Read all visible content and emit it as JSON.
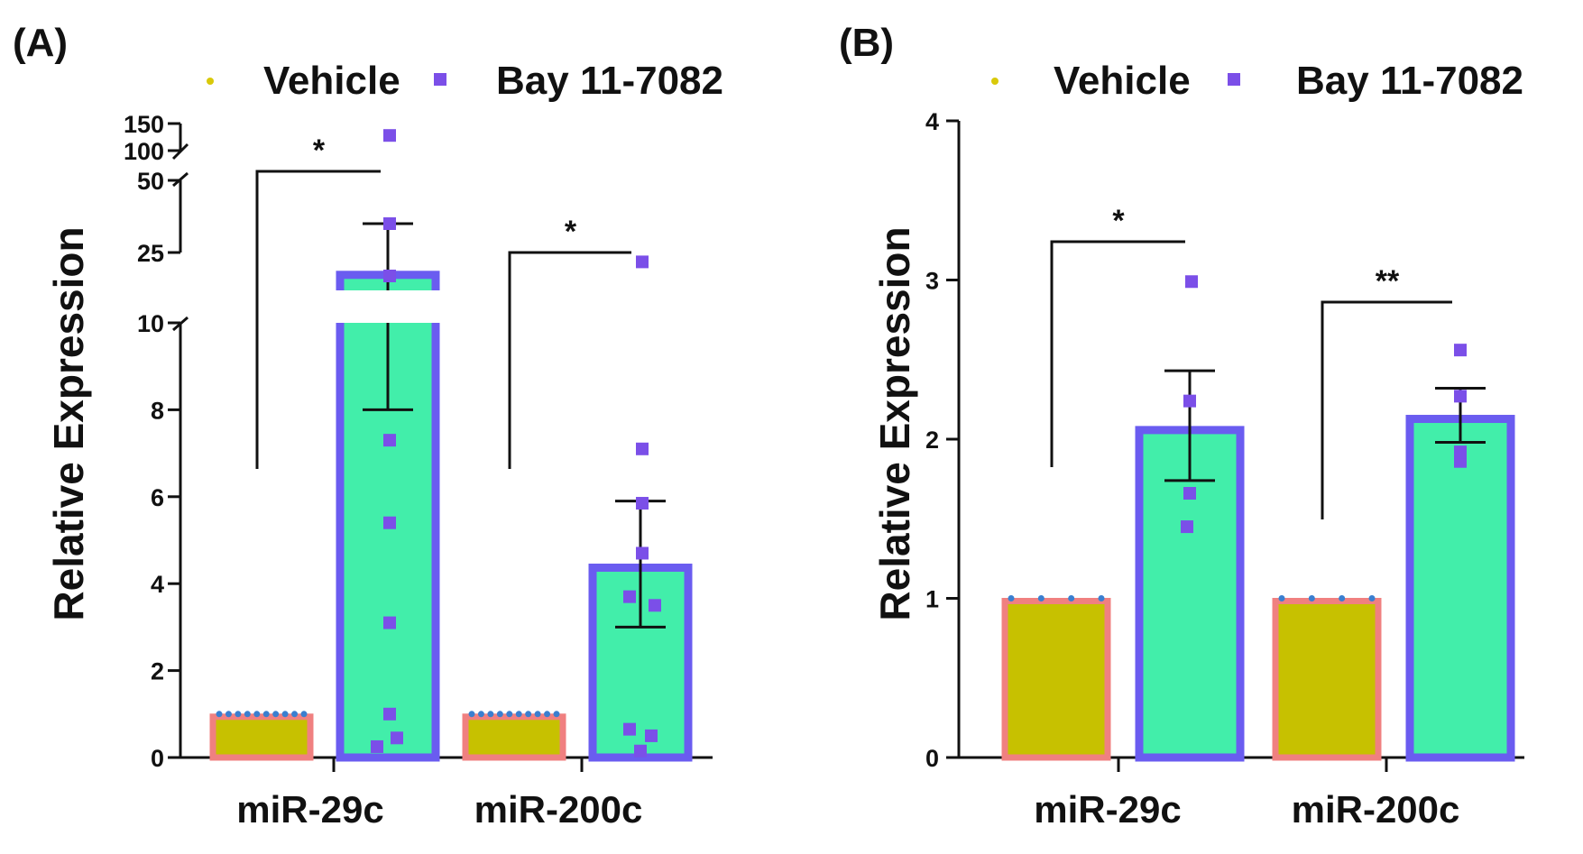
{
  "colors": {
    "vehicle_fill": "#c7c100",
    "vehicle_edge": "#f08080",
    "vehicle_dot": "#3a7fd0",
    "bay_fill": "#42eeaa",
    "bay_edge": "#6a5cf0",
    "bay_marker": "#7b4fe8",
    "axis": "#111111",
    "legend_vehicle_dot": "#d9c90a"
  },
  "chart_data": [
    {
      "panel_label": "(A)",
      "type": "bar",
      "legend": [
        "Vehicle",
        "Bay 11-7082"
      ],
      "categories": [
        "miR-29c",
        "miR-200c"
      ],
      "ylabel": "Relative Expression",
      "xlabel": "",
      "y_axis_segments": [
        {
          "range": [
            0,
            10
          ],
          "ticks": [
            "0",
            "2",
            "4",
            "6",
            "8",
            "10"
          ]
        },
        {
          "range": [
            25,
            50
          ],
          "ticks": [
            "25",
            "50"
          ]
        },
        {
          "range": [
            100,
            150
          ],
          "ticks": [
            "100",
            "150"
          ]
        }
      ],
      "y_tick_values": [
        0,
        2,
        4,
        6,
        8,
        10,
        25,
        50,
        100,
        150
      ],
      "series": [
        {
          "name": "Vehicle",
          "values": [
            1,
            1
          ],
          "points": [
            [
              1,
              1,
              1,
              1,
              1,
              1,
              1,
              1,
              1,
              1
            ],
            [
              1,
              1,
              1,
              1,
              1,
              1,
              1,
              1,
              1,
              1
            ]
          ]
        },
        {
          "name": "Bay 11-7082",
          "values": [
            21,
            4.45
          ],
          "error_low": [
            8,
            3.0
          ],
          "error_high": [
            35,
            5.9
          ],
          "points": [
            [
              0.25,
              0.45,
              1.0,
              3.1,
              5.4,
              7.3,
              20,
              35,
              128
            ],
            [
              0.15,
              0.5,
              0.65,
              3.5,
              3.7,
              4.7,
              5.85,
              7.1,
              23
            ]
          ]
        }
      ],
      "significance": [
        "*",
        "*"
      ]
    },
    {
      "panel_label": "(B)",
      "type": "bar",
      "legend": [
        "Vehicle",
        "Bay 11-7082"
      ],
      "categories": [
        "miR-29c",
        "miR-200c"
      ],
      "ylabel": "Relative Expression",
      "xlabel": "",
      "ylim": [
        0,
        4
      ],
      "y_ticks": [
        "0",
        "1",
        "2",
        "3",
        "4"
      ],
      "series": [
        {
          "name": "Vehicle",
          "values": [
            1,
            1
          ],
          "points": [
            [
              1,
              1,
              1,
              1
            ],
            [
              1,
              1,
              1,
              1
            ]
          ]
        },
        {
          "name": "Bay 11-7082",
          "values": [
            2.08,
            2.15
          ],
          "error_low": [
            1.74,
            1.98
          ],
          "error_high": [
            2.43,
            2.32
          ],
          "points": [
            [
              1.45,
              1.66,
              2.24,
              2.99
            ],
            [
              1.86,
              1.92,
              2.27,
              2.56
            ]
          ]
        }
      ],
      "significance": [
        "*",
        "**"
      ]
    }
  ]
}
